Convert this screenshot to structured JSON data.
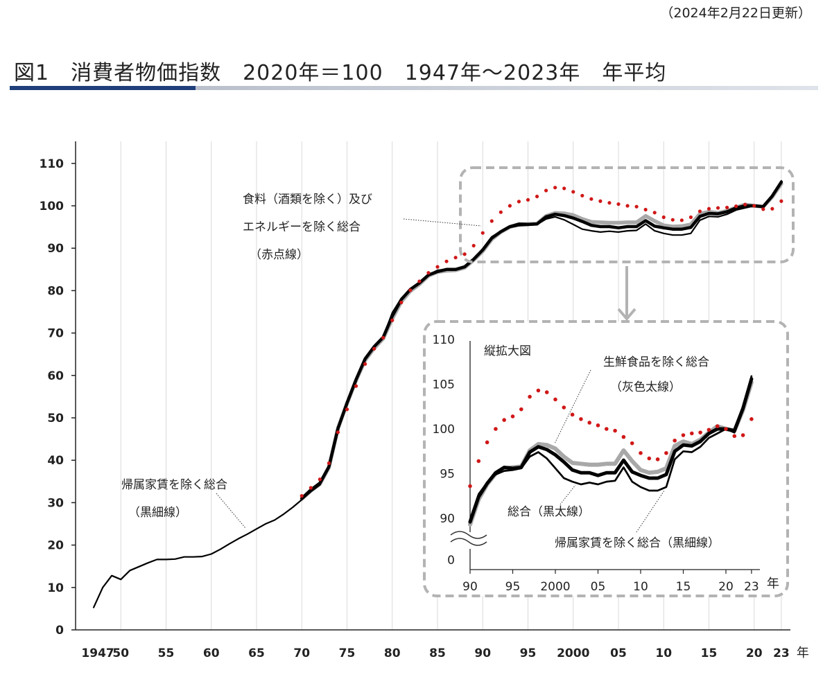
{
  "header": {
    "updated": "（2024年2月22日更新）",
    "title": "図1　消費者物価指数　2020年＝100　1947年～2023年　年平均"
  },
  "colors": {
    "total": "#000000",
    "excl_fresh": "#a8a8a8",
    "excl_rent": "#000000",
    "excl_food_energy": "#d01818",
    "grid": "#d9d9d9",
    "box": "#b3b3b3"
  },
  "chart_data": [
    {
      "type": "line",
      "x_tick_labels": [
        "1947",
        "50",
        "55",
        "60",
        "65",
        "70",
        "75",
        "80",
        "85",
        "90",
        "95",
        "2000",
        "05",
        "10",
        "15",
        "20",
        "23"
      ],
      "x_unit": "年",
      "y_ticks": [
        0,
        10,
        20,
        30,
        40,
        50,
        60,
        70,
        80,
        90,
        100,
        110
      ],
      "xlim": [
        1945,
        2024
      ],
      "ylim": [
        0,
        110
      ],
      "grid": "vertical",
      "series": [
        {
          "name": "帰属家賃を除く総合（黒細線）",
          "x": [
            1947,
            1948,
            1949,
            1950,
            1951,
            1952,
            1953,
            1954,
            1955,
            1956,
            1957,
            1958,
            1959,
            1960,
            1961,
            1962,
            1963,
            1964,
            1965,
            1966,
            1967,
            1968,
            1969,
            1970,
            1971,
            1972,
            1973,
            1974,
            1975,
            1976,
            1977,
            1978,
            1979,
            1980,
            1981,
            1982,
            1983,
            1984,
            1985,
            1986,
            1987,
            1988,
            1989,
            1990,
            1991,
            1992,
            1993,
            1994,
            1995,
            1996,
            1997,
            1998,
            1999,
            2000,
            2001,
            2002,
            2003,
            2004,
            2005,
            2006,
            2007,
            2008,
            2009,
            2010,
            2011,
            2012,
            2013,
            2014,
            2015,
            2016,
            2017,
            2018,
            2019,
            2020,
            2021,
            2022,
            2023
          ],
          "y": [
            5.3,
            10,
            12.8,
            11.9,
            14,
            14.9,
            15.8,
            16.6,
            16.6,
            16.7,
            17.2,
            17.2,
            17.3,
            17.9,
            19,
            20.3,
            21.5,
            22.6,
            23.8,
            25,
            25.9,
            27.3,
            28.9,
            30.7,
            32.6,
            34.2,
            38.1,
            47.6,
            53.6,
            59,
            63.8,
            66.6,
            69.1,
            74.8,
            78.2,
            80.3,
            82,
            83.7,
            84.8,
            85,
            85,
            85.5,
            87.5,
            89.9,
            92.7,
            94,
            94.9,
            95.3,
            95.4,
            95.6,
            96.9,
            97.4,
            96.7,
            95.6,
            94.5,
            94.1,
            93.8,
            94,
            93.8,
            94.1,
            94.2,
            95.7,
            94.1,
            93.5,
            93.1,
            93.1,
            93.5,
            96.6,
            97.5,
            97.4,
            98,
            99,
            99.5,
            100,
            99.6,
            102.5,
            105.9
          ]
        },
        {
          "name": "総合（黒太線）",
          "x": [
            1970,
            1971,
            1972,
            1973,
            1974,
            1975,
            1976,
            1977,
            1978,
            1979,
            1980,
            1981,
            1982,
            1983,
            1984,
            1985,
            1986,
            1987,
            1988,
            1989,
            1990,
            1991,
            1992,
            1993,
            1994,
            1995,
            1996,
            1997,
            1998,
            1999,
            2000,
            2001,
            2002,
            2003,
            2004,
            2005,
            2006,
            2007,
            2008,
            2009,
            2010,
            2011,
            2012,
            2013,
            2014,
            2015,
            2016,
            2017,
            2018,
            2019,
            2020,
            2021,
            2022,
            2023
          ],
          "y": [
            31,
            33,
            34.6,
            38.5,
            47.5,
            53.5,
            59,
            63.9,
            66.8,
            69,
            74,
            77.9,
            80.3,
            81.8,
            83.7,
            84.5,
            85,
            85,
            85.6,
            87.4,
            89.6,
            92.4,
            93.9,
            95.1,
            95.7,
            95.6,
            95.7,
            97.4,
            98,
            97.7,
            97.1,
            96.3,
            95.4,
            95.1,
            95.1,
            94.8,
            95.1,
            95.1,
            96.5,
            95.2,
            94.8,
            94.5,
            94.5,
            94.9,
            97.5,
            98.2,
            98.1,
            98.6,
            99.5,
            100,
            100,
            99.8,
            102.3,
            105.6
          ]
        },
        {
          "name": "生鮮食品を除く総合（灰色太線）",
          "x": [
            1970,
            1971,
            1972,
            1973,
            1974,
            1975,
            1976,
            1977,
            1978,
            1979,
            1980,
            1981,
            1982,
            1983,
            1984,
            1985,
            1986,
            1987,
            1988,
            1989,
            1990,
            1991,
            1992,
            1993,
            1994,
            1995,
            1996,
            1997,
            1998,
            1999,
            2000,
            2001,
            2002,
            2003,
            2004,
            2005,
            2006,
            2007,
            2008,
            2009,
            2010,
            2011,
            2012,
            2013,
            2014,
            2015,
            2016,
            2017,
            2018,
            2019,
            2020,
            2021,
            2022,
            2023
          ],
          "y": [
            30.9,
            32.8,
            34.4,
            38.3,
            47.6,
            53.4,
            58.8,
            63.6,
            66.4,
            68.7,
            73.4,
            77.4,
            79.9,
            81.5,
            83.5,
            84.4,
            84.7,
            84.8,
            85.4,
            87.2,
            89.3,
            92.1,
            93.8,
            95,
            95.6,
            95.7,
            95.8,
            97.6,
            98.3,
            98.2,
            97.8,
            96.9,
            96.2,
            96.1,
            96,
            96,
            96.1,
            96.1,
            97.6,
            96.4,
            95.4,
            95.1,
            95.2,
            95.6,
            98.1,
            98.6,
            98.3,
            98.8,
            99.6,
            100.3,
            100,
            99.8,
            102.1,
            105.2
          ]
        },
        {
          "name": "食料（酒類を除く）及びエネルギーを除く総合（赤点線）",
          "x": [
            1970,
            1971,
            1972,
            1973,
            1974,
            1975,
            1976,
            1977,
            1978,
            1979,
            1980,
            1981,
            1982,
            1983,
            1984,
            1985,
            1986,
            1987,
            1988,
            1989,
            1990,
            1991,
            1992,
            1993,
            1994,
            1995,
            1996,
            1997,
            1998,
            1999,
            2000,
            2001,
            2002,
            2003,
            2004,
            2005,
            2006,
            2007,
            2008,
            2009,
            2010,
            2011,
            2012,
            2013,
            2014,
            2015,
            2016,
            2017,
            2018,
            2019,
            2020,
            2021,
            2022,
            2023
          ],
          "y": [
            31.6,
            33.5,
            35.5,
            39.3,
            46.6,
            52,
            57.5,
            62.7,
            66.3,
            68.9,
            73,
            77.2,
            80.1,
            82.2,
            84.2,
            85.6,
            86.9,
            87.8,
            88.6,
            90.6,
            93.6,
            96.4,
            98.5,
            100,
            101,
            101.4,
            102.2,
            103.6,
            104.3,
            104.1,
            103.3,
            102.4,
            101.6,
            101.1,
            100.7,
            100.4,
            100,
            99.8,
            99.1,
            98.4,
            97.3,
            96.7,
            96.6,
            97.3,
            98.7,
            99.3,
            99.5,
            99.6,
            99.9,
            100.3,
            100,
            99.2,
            99.3,
            101.1
          ]
        }
      ],
      "annotations": {
        "food_energy": [
          "食料（酒類を除く）及び",
          "エネルギーを除く総合",
          "（赤点線）"
        ],
        "excl_rent": [
          "帰属家賃を除く総合",
          "（黒細線）"
        ]
      }
    },
    {
      "type": "line",
      "title": "縦拡大図",
      "x_tick_labels": [
        "90",
        "95",
        "2000",
        "05",
        "10",
        "15",
        "20",
        "23"
      ],
      "x_unit": "年",
      "y_ticks": [
        0,
        90,
        95,
        100,
        105,
        110
      ],
      "xlim": [
        1990,
        2023
      ],
      "ylim": [
        90,
        110
      ],
      "y_break": true,
      "annotations": {
        "excl_fresh": [
          "生鮮食品を除く総合",
          "（灰色太線）"
        ],
        "total": "総合（黒太線）",
        "excl_rent": "帰属家賃を除く総合（黒細線）"
      }
    }
  ]
}
